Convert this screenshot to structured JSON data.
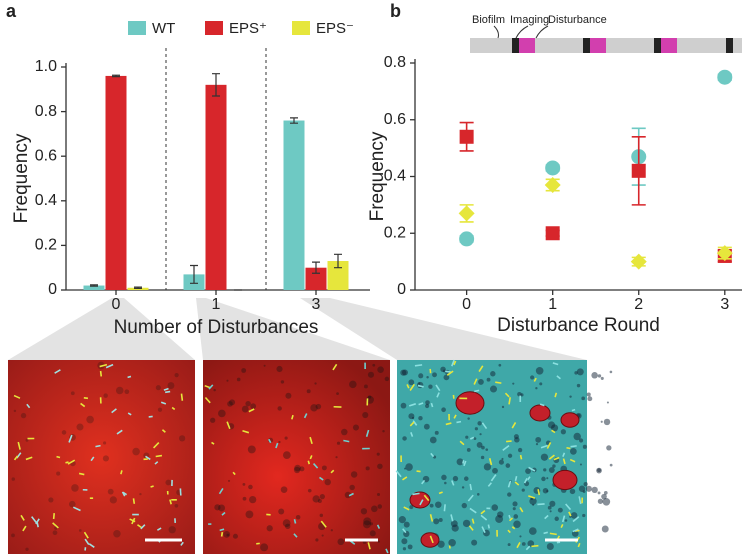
{
  "chart_data": [
    {
      "type": "bar",
      "panel_label": "a",
      "xlabel": "Number of Disturbances",
      "ylabel": "Frequency",
      "categories": [
        "0",
        "1",
        "3"
      ],
      "series": [
        {
          "name": "WT",
          "color": "#6ec9c3",
          "values": [
            0.02,
            0.07,
            0.76
          ],
          "errors": [
            0.003,
            0.04,
            0.012
          ]
        },
        {
          "name": "EPS⁺",
          "color": "#d7262b",
          "values": [
            0.96,
            0.92,
            0.1
          ],
          "errors": [
            0.003,
            0.05,
            0.025
          ]
        },
        {
          "name": "EPS⁻",
          "color": "#e6e63c",
          "values": [
            0.01,
            0.0,
            0.13
          ],
          "errors": [
            0.003,
            0.0,
            0.03
          ]
        }
      ],
      "ylim": [
        0,
        1.0
      ],
      "yticks": [
        0,
        0.2,
        0.4,
        0.6,
        0.8,
        {
          "value": 1.0,
          "label": "1.0"
        }
      ],
      "legend": "top"
    },
    {
      "type": "scatter",
      "panel_label": "b",
      "xlabel": "Disturbance Round",
      "ylabel": "Frequency",
      "schematic_labels": [
        "Biofilm",
        "Imaging",
        "Disturbance"
      ],
      "x": [
        0,
        1,
        2,
        3
      ],
      "series": [
        {
          "color": "#6ec9c3",
          "marker": "circle",
          "values": [
            0.18,
            0.43,
            0.47,
            0.75
          ],
          "errors": [
            0.01,
            0.01,
            0.1,
            0.01
          ]
        },
        {
          "color": "#d7262b",
          "marker": "square",
          "values": [
            0.54,
            0.2,
            0.42,
            0.12
          ],
          "errors": [
            0.05,
            0.01,
            0.12,
            0.02
          ]
        },
        {
          "color": "#e6e63c",
          "marker": "diamond",
          "values": [
            0.27,
            0.37,
            0.1,
            0.13
          ],
          "errors": [
            0.03,
            0.02,
            0.015,
            0.02
          ]
        }
      ],
      "xlim": [
        -0.6,
        3.2
      ],
      "ylim": [
        0,
        0.8
      ],
      "xticks": [
        0,
        1,
        2,
        3
      ],
      "yticks": [
        0,
        0.2,
        0.4,
        0.6,
        0.8
      ]
    }
  ]
}
